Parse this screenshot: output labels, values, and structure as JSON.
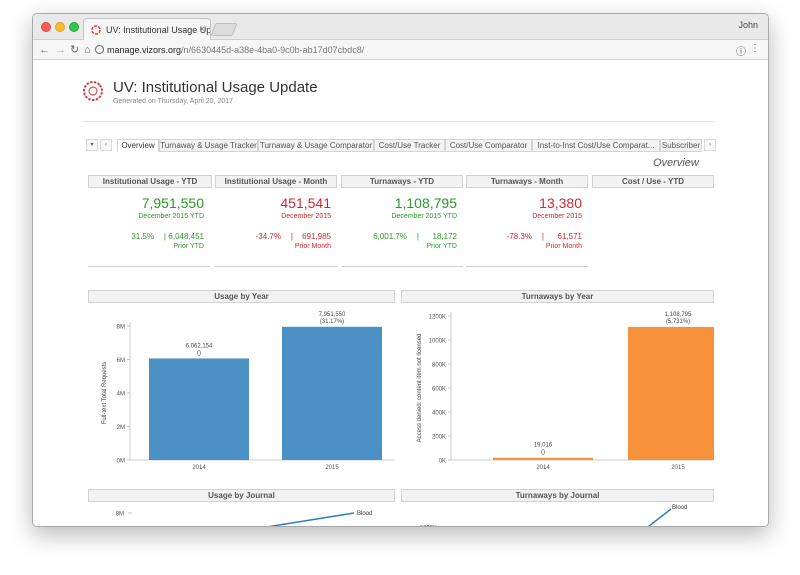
{
  "browser": {
    "tab_title": "UV: Institutional Usage Update",
    "tab_close": "×",
    "user": "John",
    "url_domain": "manage.vizors.org",
    "url_path": "/n/6630445d-a38e-4ba0-9c0b-ab17d07cbdc8/",
    "back_icon": "arrow-left-icon",
    "forward_icon": "arrow-right-icon",
    "reload_icon": "reload-icon",
    "home_icon": "home-icon",
    "info_icon": "info-icon",
    "menu_icon": "kebab-menu-icon"
  },
  "report": {
    "title": "UV: Institutional Usage Update",
    "generated_prefix": "Generated on",
    "generated_date": "Thursday, April 20, 2017"
  },
  "dashboard_tabs": {
    "controls": [
      "▾",
      "‹",
      "›"
    ],
    "items": [
      {
        "label": "Overview",
        "active": true
      },
      {
        "label": "Turnaway & Usage Tracker",
        "active": false
      },
      {
        "label": "Turnaway & Usage Comparator",
        "active": false
      },
      {
        "label": "Cost/Use Tracker",
        "active": false
      },
      {
        "label": "Cost/Use Comparator",
        "active": false
      },
      {
        "label": "Inst-to-Inst Cost/Use Comparat...",
        "active": false
      },
      {
        "label": "Subscriber",
        "active": false
      }
    ]
  },
  "overview_label": "Overview",
  "kpis": [
    {
      "header": "Institutional Usage - YTD",
      "value": "7,951,550",
      "period": "December 2015 YTD",
      "pct": "31.5%",
      "sep": "|",
      "prior": "6,048,451",
      "prior_label": "Prior YTD",
      "tone": "green"
    },
    {
      "header": "Institutional Usage - Month",
      "value": "451,541",
      "period": "December 2015",
      "pct": "-34.7%",
      "sep": "|",
      "prior": "691,985",
      "prior_label": "Prior Month",
      "tone": "red"
    },
    {
      "header": "Turnaways - YTD",
      "value": "1,108,795",
      "period": "December 2015 YTD",
      "pct": "6,001.7%",
      "sep": "|",
      "prior": "18,172",
      "prior_label": "Prior YTD",
      "tone": "green"
    },
    {
      "header": "Turnaways - Month",
      "value": "13,380",
      "period": "December 2015",
      "pct": "-78.3%",
      "sep": "|",
      "prior": "61,571",
      "prior_label": "Prior Month",
      "tone": "red"
    },
    {
      "header": "Cost / Use - YTD"
    }
  ],
  "chart_data": [
    {
      "type": "bar",
      "title": "Usage by Year",
      "xlabel": "",
      "ylabel": "Full-text Total Requests",
      "categories": [
        "2014",
        "2015"
      ],
      "values": [
        6062154,
        7951550
      ],
      "data_labels": [
        "6,062,154",
        "7,951,550"
      ],
      "data_sublabels": [
        "()",
        "(31.17%)"
      ],
      "yticks": [
        "0M",
        "2M",
        "4M",
        "6M",
        "8M"
      ],
      "ylim": [
        0,
        8000000
      ],
      "color": "#4a90c4"
    },
    {
      "type": "bar",
      "title": "Turnaways by Year",
      "xlabel": "",
      "ylabel": "Access denied: content item not licensed",
      "categories": [
        "2014",
        "2015"
      ],
      "values": [
        19016,
        1108795
      ],
      "data_labels": [
        "19,016",
        "1,108,795"
      ],
      "data_sublabels": [
        "()",
        "(5,731%)"
      ],
      "yticks": [
        "0K",
        "200K",
        "400K",
        "600K",
        "800K",
        "1000K",
        "1200K"
      ],
      "ylim": [
        0,
        1200000
      ],
      "color": "#f7923a"
    },
    {
      "type": "line",
      "title": "Usage by Journal",
      "yticks": [
        "8M"
      ],
      "series_labels": [
        "Blood"
      ],
      "color": "#2f7fb8"
    },
    {
      "type": "line",
      "title": "Turnaways by Journal",
      "yticks": [
        "1000K"
      ],
      "series_labels": [
        "Blood"
      ],
      "color": "#2f7fb8"
    }
  ]
}
